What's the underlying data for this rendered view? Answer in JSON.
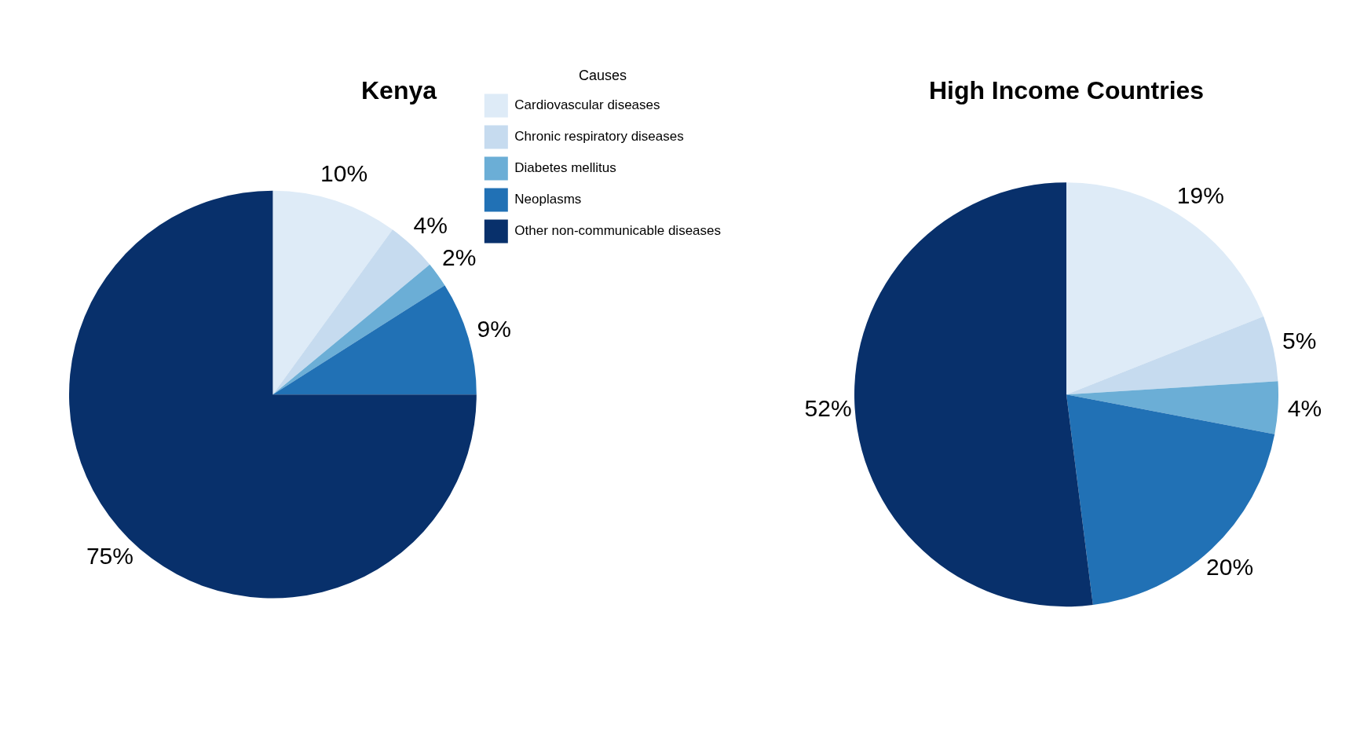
{
  "chart_data": [
    {
      "type": "pie",
      "title": "Kenya",
      "legend_title": "Causes",
      "legend": "right",
      "categories": [
        "Cardiovascular diseases",
        "Chronic respiratory diseases",
        "Diabetes mellitus",
        "Neoplasms",
        "Other non-communicable diseases"
      ],
      "values": [
        10,
        4,
        2,
        9,
        75
      ],
      "value_labels": [
        "10%",
        "4%",
        "2%",
        "9%",
        "75%"
      ],
      "colors": [
        "#deebf7",
        "#c6dbef",
        "#6baed6",
        "#2171b5",
        "#08306b"
      ]
    },
    {
      "type": "pie",
      "title": "High Income Countries",
      "legend": false,
      "categories": [
        null,
        null,
        null,
        null,
        null
      ],
      "values": [
        19,
        5,
        4,
        20,
        52
      ],
      "value_labels": [
        "19%",
        "5%",
        "4%",
        "20%",
        "52%"
      ],
      "colors": [
        "#deebf7",
        "#c6dbef",
        "#6baed6",
        "#2171b5",
        "#08306b"
      ]
    }
  ]
}
